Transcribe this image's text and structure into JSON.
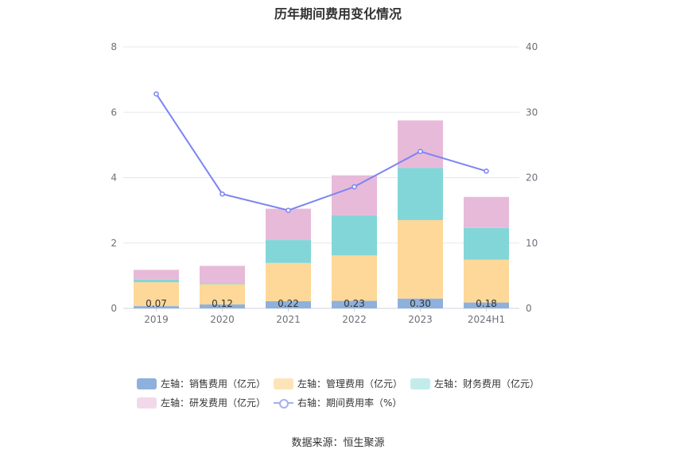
{
  "chart_data": {
    "type": "bar",
    "title": "历年期间费用变化情况",
    "categories": [
      "2019",
      "2020",
      "2021",
      "2022",
      "2023",
      "2024H1"
    ],
    "series": [
      {
        "name": "左轴：销售费用（亿元）",
        "type": "bar",
        "axis": "left",
        "color": "#8eb0dd",
        "values": [
          0.07,
          0.12,
          0.22,
          0.23,
          0.3,
          0.18
        ]
      },
      {
        "name": "左轴：管理费用（亿元）",
        "type": "bar",
        "axis": "left",
        "color": "#fed898",
        "values": [
          0.73,
          0.62,
          1.17,
          1.39,
          2.4,
          1.31
        ]
      },
      {
        "name": "左轴：财务费用（亿元）",
        "type": "bar",
        "axis": "left",
        "color": "#83d6d8",
        "values": [
          0.08,
          0.03,
          0.7,
          1.23,
          1.6,
          0.97
        ]
      },
      {
        "name": "左轴：研发费用（亿元）",
        "type": "bar",
        "axis": "left",
        "color": "#e7bad9",
        "values": [
          0.3,
          0.53,
          0.96,
          1.22,
          1.45,
          0.95
        ]
      },
      {
        "name": "右轴：期间费用率（%）",
        "type": "line",
        "axis": "right",
        "color": "#7b84f2",
        "values": [
          32.8,
          17.5,
          15.0,
          18.6,
          24.0,
          21.0
        ]
      }
    ],
    "data_labels": [
      "0.07",
      "0.12",
      "0.22",
      "0.23",
      "0.30",
      "0.18"
    ],
    "y_left": {
      "min": 0,
      "max": 8,
      "ticks": [
        "0",
        "2",
        "4",
        "6",
        "8"
      ]
    },
    "y_right": {
      "min": 0,
      "max": 40,
      "ticks": [
        "0",
        "10",
        "20",
        "30",
        "40"
      ]
    },
    "grid": true,
    "legend_position": "bottom"
  },
  "legend_colors": {
    "sales": "#8eb0dd",
    "admin": "#fde4b8",
    "finance": "#c2ecec",
    "rnd": "#f2d9ea",
    "rate": "#a7aef3"
  },
  "source": "数据来源：恒生聚源"
}
